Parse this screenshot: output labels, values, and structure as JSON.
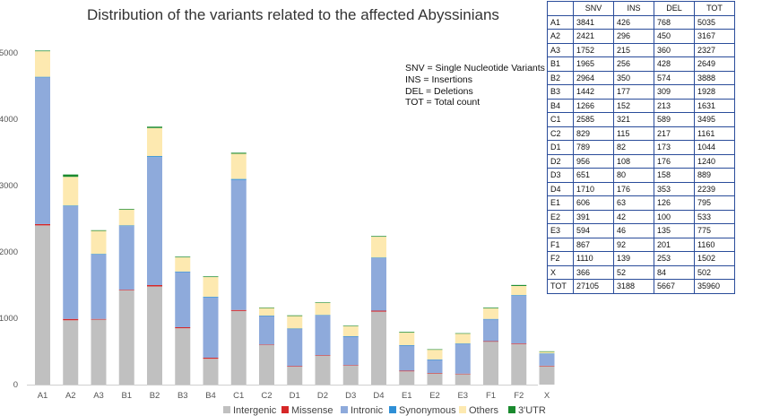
{
  "chart_data": {
    "type": "bar",
    "stacked": true,
    "title": "Distribution of the variants related to the affected Abyssinians",
    "categories": [
      "A1",
      "A2",
      "A3",
      "B1",
      "B2",
      "B3",
      "B4",
      "C1",
      "C2",
      "D1",
      "D2",
      "D3",
      "D4",
      "E1",
      "E2",
      "E3",
      "F1",
      "F2",
      "X"
    ],
    "ylim": [
      0,
      5000
    ],
    "yticks": [
      0,
      1000,
      2000,
      3000,
      4000,
      5000
    ],
    "grid": false,
    "legend_position": "bottom",
    "series": [
      {
        "name": "Intergenic",
        "color": "#c0c0c0",
        "values": [
          2400,
          970,
          980,
          1420,
          1480,
          850,
          390,
          1110,
          600,
          270,
          440,
          290,
          1100,
          200,
          170,
          160,
          650,
          610,
          280
        ]
      },
      {
        "name": "Missense",
        "color": "#d62728",
        "values": [
          20,
          20,
          10,
          10,
          20,
          15,
          15,
          15,
          5,
          10,
          5,
          5,
          15,
          10,
          5,
          5,
          5,
          10,
          5
        ]
      },
      {
        "name": "Intronic",
        "color": "#8eaadb",
        "values": [
          2210,
          1700,
          970,
          960,
          1930,
          830,
          910,
          1960,
          430,
          560,
          600,
          430,
          790,
          380,
          200,
          450,
          330,
          720,
          180
        ]
      },
      {
        "name": "Synonymous",
        "color": "#2e8fd6",
        "values": [
          10,
          10,
          10,
          10,
          15,
          10,
          10,
          15,
          5,
          5,
          5,
          5,
          10,
          5,
          5,
          5,
          5,
          10,
          5
        ]
      },
      {
        "name": "Others",
        "color": "#fde9b0",
        "values": [
          385,
          432,
          347,
          239,
          423,
          213,
          296,
          380,
          120,
          189,
          185,
          154,
          314,
          190,
          148,
          150,
          160,
          137,
          27
        ]
      },
      {
        "name": "3'UTR",
        "color": "#1a8a2e",
        "values": [
          10,
          35,
          10,
          10,
          20,
          10,
          10,
          15,
          1,
          10,
          5,
          5,
          10,
          10,
          5,
          5,
          10,
          15,
          5
        ]
      }
    ]
  },
  "notes": [
    "SNV = Single Nucleotide Variants",
    "INS = Insertions",
    "DEL = Deletions",
    "TOT = Total count"
  ],
  "table": {
    "headers": [
      "",
      "SNV",
      "INS",
      "DEL",
      "TOT"
    ],
    "rows": [
      [
        "A1",
        "3841",
        "426",
        "768",
        "5035"
      ],
      [
        "A2",
        "2421",
        "296",
        "450",
        "3167"
      ],
      [
        "A3",
        "1752",
        "215",
        "360",
        "2327"
      ],
      [
        "B1",
        "1965",
        "256",
        "428",
        "2649"
      ],
      [
        "B2",
        "2964",
        "350",
        "574",
        "3888"
      ],
      [
        "B3",
        "1442",
        "177",
        "309",
        "1928"
      ],
      [
        "B4",
        "1266",
        "152",
        "213",
        "1631"
      ],
      [
        "C1",
        "2585",
        "321",
        "589",
        "3495"
      ],
      [
        "C2",
        "829",
        "115",
        "217",
        "1161"
      ],
      [
        "D1",
        "789",
        "82",
        "173",
        "1044"
      ],
      [
        "D2",
        "956",
        "108",
        "176",
        "1240"
      ],
      [
        "D3",
        "651",
        "80",
        "158",
        "889"
      ],
      [
        "D4",
        "1710",
        "176",
        "353",
        "2239"
      ],
      [
        "E1",
        "606",
        "63",
        "126",
        "795"
      ],
      [
        "E2",
        "391",
        "42",
        "100",
        "533"
      ],
      [
        "E3",
        "594",
        "46",
        "135",
        "775"
      ],
      [
        "F1",
        "867",
        "92",
        "201",
        "1160"
      ],
      [
        "F2",
        "1110",
        "139",
        "253",
        "1502"
      ],
      [
        "X",
        "366",
        "52",
        "84",
        "502"
      ],
      [
        "TOT",
        "27105",
        "3188",
        "5667",
        "35960"
      ]
    ]
  }
}
